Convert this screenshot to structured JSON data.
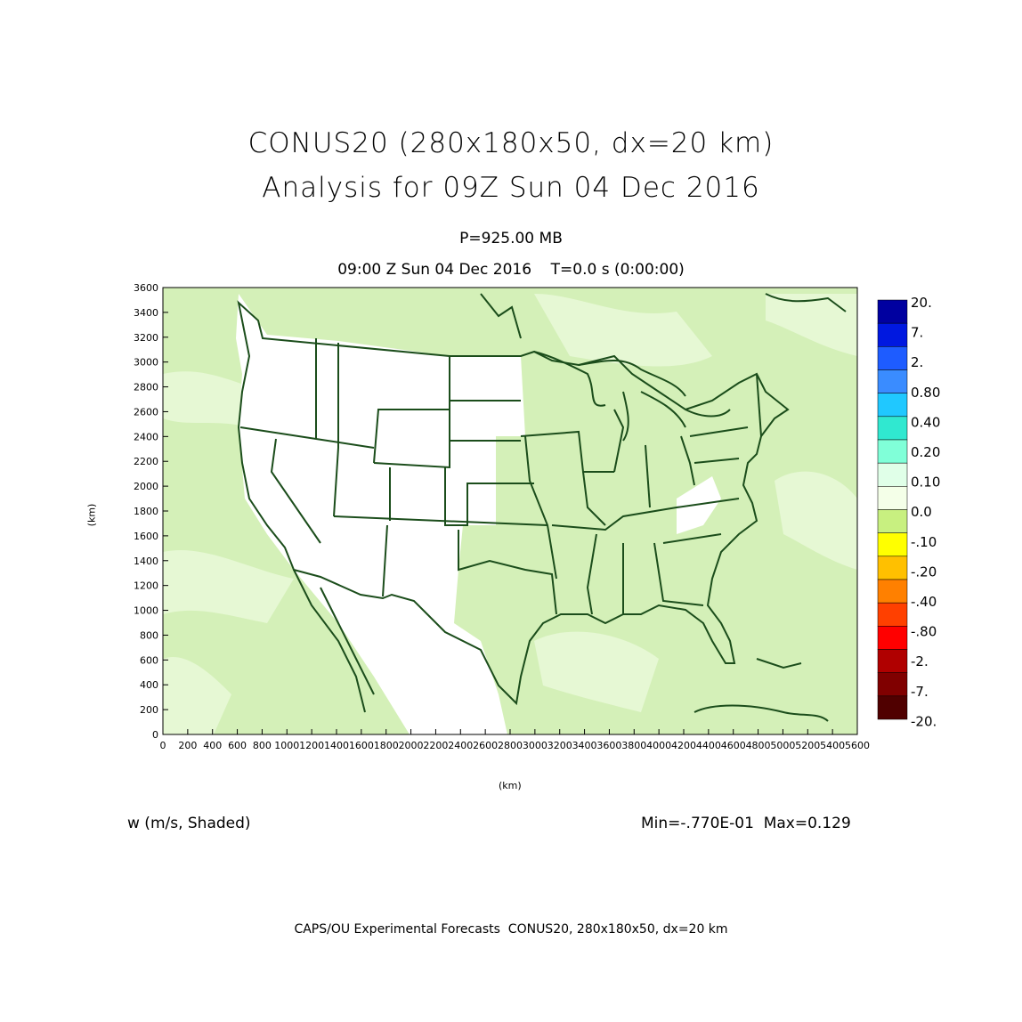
{
  "title": {
    "line1": "CONUS20 (280x180x50, dx=20 km)",
    "line2": "Analysis for 09Z Sun 04 Dec 2016"
  },
  "subtitle": {
    "level": "P=925.00 MB",
    "time": "09:00 Z Sun 04 Dec 2016    T=0.0 s (0:00:00)"
  },
  "axes": {
    "x_label": "(km)",
    "y_label": "(km)",
    "x_ticks": [
      "0",
      "200",
      "400",
      "600",
      "800",
      "1000",
      "1200",
      "1400",
      "1600",
      "1800",
      "2000",
      "2200",
      "2400",
      "2600",
      "2800",
      "3000",
      "3200",
      "3400",
      "3600",
      "3800",
      "4000",
      "4200",
      "4400",
      "4600",
      "4800",
      "5000",
      "5200",
      "5400",
      "5600"
    ],
    "y_ticks": [
      "0",
      "200",
      "400",
      "600",
      "800",
      "1000",
      "1200",
      "1400",
      "1600",
      "1800",
      "2000",
      "2200",
      "2400",
      "2600",
      "2800",
      "3000",
      "3200",
      "3400",
      "3600"
    ],
    "x_range": [
      0,
      5600
    ],
    "y_range": [
      0,
      3600
    ]
  },
  "field": {
    "label": "w (m/s, Shaded)",
    "stats": "Min=-.770E-01  Max=0.129"
  },
  "legend": {
    "labels": [
      "20.",
      "7.",
      "2.",
      "0.80",
      "0.40",
      "0.20",
      "0.10",
      "0.0",
      "-.10",
      "-.20",
      "-.40",
      "-.80",
      "-2.",
      "-7.",
      "-20."
    ],
    "colors": [
      "#0000a0",
      "#0018e0",
      "#1e5cff",
      "#3a8cff",
      "#20c8ff",
      "#30e8d0",
      "#80ffd8",
      "#e0ffe8",
      "#f4ffe8",
      "#c8f080",
      "#ffff00",
      "#ffc000",
      "#ff8000",
      "#ff4000",
      "#ff0000",
      "#b00000",
      "#800000",
      "#500000"
    ]
  },
  "colors": {
    "map_fill": "#d4f0b8",
    "map_fill_light": "#e6f8d4",
    "map_border": "#1b4d1b"
  },
  "footer": "CAPS/OU Experimental Forecasts  CONUS20, 280x180x50, dx=20 km"
}
